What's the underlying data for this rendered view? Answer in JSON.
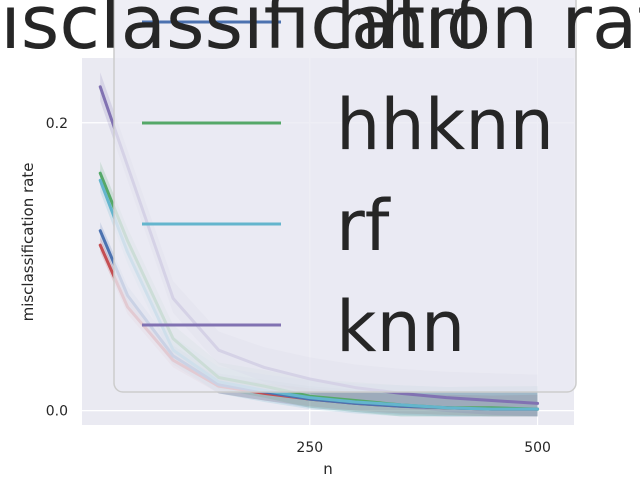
{
  "chart_data": {
    "type": "line",
    "title": "misclassification rate",
    "xlabel": "n",
    "ylabel": "misclassification rate",
    "xlim": [
      0,
      540
    ],
    "ylim": [
      -0.01,
      0.245
    ],
    "xticks": [
      250,
      500
    ],
    "yticks": [
      0.0,
      0.2
    ],
    "xtick_labels": [
      "250",
      "500"
    ],
    "ytick_labels": [
      "0.0",
      "0.2"
    ],
    "grid": true,
    "legend_position": "top-right",
    "background": "#eaeaf2",
    "x": [
      20,
      50,
      100,
      150,
      200,
      250,
      300,
      350,
      400,
      450,
      500
    ],
    "series": [
      {
        "name": "hhrf",
        "color": "#4c72b0",
        "values": [
          0.125,
          0.08,
          0.038,
          0.018,
          0.013,
          0.008,
          0.005,
          0.003,
          0.002,
          0.001,
          0.001
        ],
        "band": 0.006
      },
      {
        "name": "hhknn",
        "color": "#55a868",
        "values": [
          0.165,
          0.118,
          0.05,
          0.023,
          0.017,
          0.01,
          0.007,
          0.004,
          0.002,
          0.002,
          0.001
        ],
        "band": 0.008
      },
      {
        "name": "rf",
        "color": "#64b5cd",
        "values": [
          0.16,
          0.11,
          0.042,
          0.02,
          0.014,
          0.009,
          0.006,
          0.004,
          0.002,
          0.001,
          0.001
        ],
        "band": 0.008
      },
      {
        "name": "knn",
        "color": "#8172b2",
        "values": [
          0.225,
          0.17,
          0.078,
          0.042,
          0.03,
          0.022,
          0.016,
          0.012,
          0.009,
          0.007,
          0.005
        ],
        "band": 0.01
      },
      {
        "name": "",
        "color": "#c44e52",
        "values": [
          0.115,
          0.072,
          0.035,
          0.017,
          0.012,
          0.008,
          0.005,
          0.003,
          0.002,
          0.001,
          0.001
        ],
        "band": 0.005
      }
    ]
  }
}
